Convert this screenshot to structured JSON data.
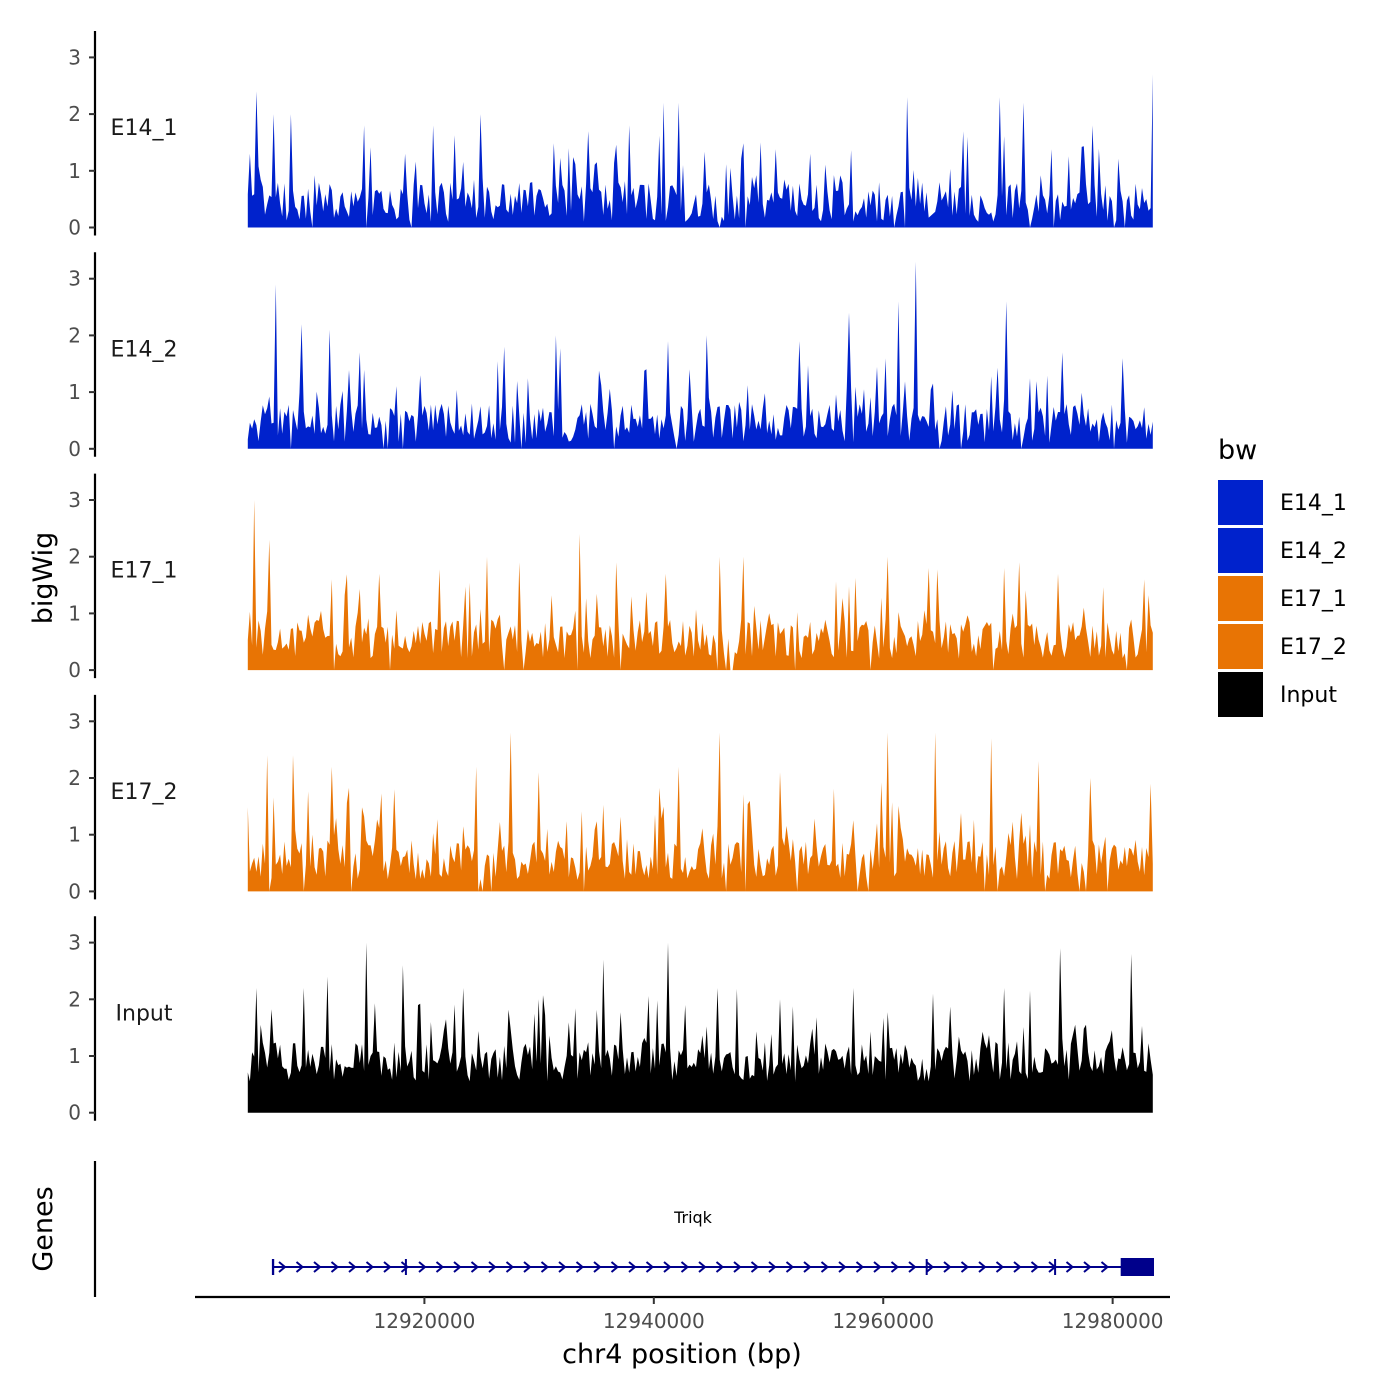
{
  "chart_data": {
    "type": "area",
    "ylabel": "bigWig",
    "xlabel": "chr4 position (bp)",
    "genes_label": "Genes",
    "xlim": [
      12900000,
      12985000
    ],
    "data_range": [
      12904600,
      12983500
    ],
    "x_ticks": [
      12920000,
      12940000,
      12960000,
      12980000
    ],
    "x_tick_labels": [
      "12920000",
      "12940000",
      "12960000",
      "12980000"
    ],
    "ylim": [
      0,
      3.4
    ],
    "y_ticks": [
      0,
      1,
      2,
      3
    ],
    "y_tick_labels": [
      "0",
      "1",
      "2",
      "3"
    ],
    "legend": {
      "title": "bw",
      "position": "right",
      "entries": [
        {
          "label": "E14_1",
          "color": "#0022CC"
        },
        {
          "label": "E14_2",
          "color": "#0022CC"
        },
        {
          "label": "E17_1",
          "color": "#E87404"
        },
        {
          "label": "E17_2",
          "color": "#E87404"
        },
        {
          "label": "Input",
          "color": "#000000"
        }
      ]
    },
    "series": [
      {
        "name": "E14_1",
        "color": "#0022CC",
        "peak_max": 2.7,
        "peaks": [
          [
            12904800,
            1.3
          ],
          [
            12905300,
            2.4
          ],
          [
            12906800,
            2.0
          ],
          [
            12908300,
            2.0
          ],
          [
            12914700,
            1.8
          ],
          [
            12918300,
            1.3
          ],
          [
            12924800,
            2.0
          ],
          [
            12932500,
            1.4
          ],
          [
            12934200,
            1.7
          ],
          [
            12937800,
            1.8
          ],
          [
            12940800,
            2.2
          ],
          [
            12942200,
            2.2
          ],
          [
            12949300,
            1.5
          ],
          [
            12953600,
            1.3
          ],
          [
            12962000,
            2.3
          ],
          [
            12967300,
            1.6
          ],
          [
            12970200,
            2.3
          ],
          [
            12972300,
            2.2
          ],
          [
            12978300,
            1.8
          ],
          [
            12983500,
            2.7
          ]
        ]
      },
      {
        "name": "E14_2",
        "color": "#0022CC",
        "peak_max": 3.3,
        "peaks": [
          [
            12907000,
            2.9
          ],
          [
            12909300,
            2.2
          ],
          [
            12911700,
            2.1
          ],
          [
            12914300,
            1.7
          ],
          [
            12919600,
            1.3
          ],
          [
            12926900,
            1.8
          ],
          [
            12931500,
            2.0
          ],
          [
            12941200,
            1.9
          ],
          [
            12944700,
            2.0
          ],
          [
            12952600,
            1.9
          ],
          [
            12957000,
            2.4
          ],
          [
            12961300,
            2.6
          ],
          [
            12962800,
            3.3
          ],
          [
            12970700,
            2.6
          ],
          [
            12975600,
            1.7
          ],
          [
            12980800,
            1.6
          ]
        ]
      },
      {
        "name": "E17_1",
        "color": "#E87404",
        "peak_max": 3.0,
        "peaks": [
          [
            12905200,
            3.0
          ],
          [
            12906400,
            2.3
          ],
          [
            12912000,
            1.6
          ],
          [
            12916000,
            1.7
          ],
          [
            12925500,
            2.0
          ],
          [
            12928300,
            1.9
          ],
          [
            12933600,
            2.4
          ],
          [
            12936800,
            1.9
          ],
          [
            12941000,
            1.7
          ],
          [
            12945800,
            2.0
          ],
          [
            12947900,
            2.0
          ],
          [
            12960300,
            2.0
          ],
          [
            12964000,
            1.8
          ],
          [
            12970500,
            1.8
          ],
          [
            12975300,
            1.7
          ],
          [
            12982700,
            1.6
          ]
        ]
      },
      {
        "name": "E17_2",
        "color": "#E87404",
        "peak_max": 2.8,
        "peaks": [
          [
            12906300,
            2.4
          ],
          [
            12908600,
            2.4
          ],
          [
            12912000,
            2.2
          ],
          [
            12917300,
            1.8
          ],
          [
            12924600,
            2.2
          ],
          [
            12927500,
            2.8
          ],
          [
            12930000,
            2.1
          ],
          [
            12942100,
            2.2
          ],
          [
            12945800,
            2.8
          ],
          [
            12951000,
            2.1
          ],
          [
            12960400,
            2.8
          ],
          [
            12964600,
            2.8
          ],
          [
            12969500,
            2.7
          ],
          [
            12973600,
            2.3
          ],
          [
            12978000,
            2.0
          ],
          [
            12983400,
            1.9
          ]
        ]
      },
      {
        "name": "Input",
        "color": "#000000",
        "peak_max": 3.0,
        "peaks": [
          [
            12905400,
            2.2
          ],
          [
            12909500,
            2.2
          ],
          [
            12911500,
            2.4
          ],
          [
            12914900,
            3.0
          ],
          [
            12918100,
            2.6
          ],
          [
            12923300,
            2.2
          ],
          [
            12930000,
            2.0
          ],
          [
            12935600,
            2.7
          ],
          [
            12941200,
            3.0
          ],
          [
            12945500,
            2.2
          ],
          [
            12951000,
            2.0
          ],
          [
            12957400,
            2.2
          ],
          [
            12964400,
            2.1
          ],
          [
            12970500,
            2.2
          ],
          [
            12975400,
            2.9
          ],
          [
            12981600,
            2.8
          ]
        ]
      }
    ],
    "genes": [
      {
        "name": "Triqk",
        "start": 12906800,
        "end": 12983600,
        "strand": "+",
        "exons": [
          [
            12906700,
            12906900
          ],
          [
            12918300,
            12918450
          ],
          [
            12963700,
            12963850
          ],
          [
            12974900,
            12975050
          ],
          [
            12980700,
            12983600
          ]
        ],
        "color": "#00008B"
      }
    ]
  }
}
